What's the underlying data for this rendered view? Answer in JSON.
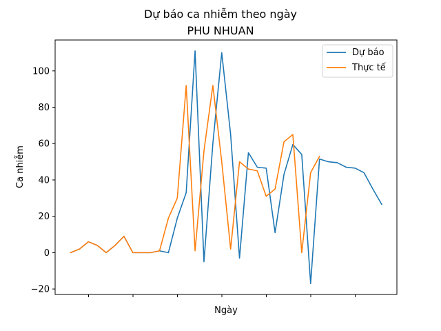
{
  "chart_data": {
    "type": "line",
    "title": "Dự báo ca nhiễm theo ngày",
    "subtitle": "PHU NHUAN",
    "xlabel": "Ngày",
    "ylabel": "Ca nhiễm",
    "ylim": [
      -23,
      117
    ],
    "yticks": [
      -20,
      0,
      20,
      40,
      60,
      80,
      100
    ],
    "xticks_count": 7,
    "legend_position": "top-right",
    "grid": false,
    "series": [
      {
        "name": "Dự báo",
        "color": "#1f77b4",
        "values": [
          0,
          2,
          6,
          4,
          0,
          4,
          9,
          0,
          0,
          0,
          1,
          0,
          19,
          33,
          111,
          -5,
          60,
          110,
          65,
          -3,
          55,
          47,
          46.5,
          11,
          43,
          59.5,
          54,
          -17,
          51.5,
          50,
          49.5,
          47,
          46.5,
          44,
          35,
          26.5
        ]
      },
      {
        "name": "Thực tế",
        "color": "#ff7f0e",
        "values": [
          0,
          2,
          6,
          4,
          0,
          4,
          9,
          0,
          0,
          0,
          1,
          19,
          30,
          92,
          1,
          56,
          92,
          50,
          2,
          50,
          46,
          45,
          31,
          35,
          61,
          65,
          0,
          44,
          53
        ]
      }
    ]
  }
}
